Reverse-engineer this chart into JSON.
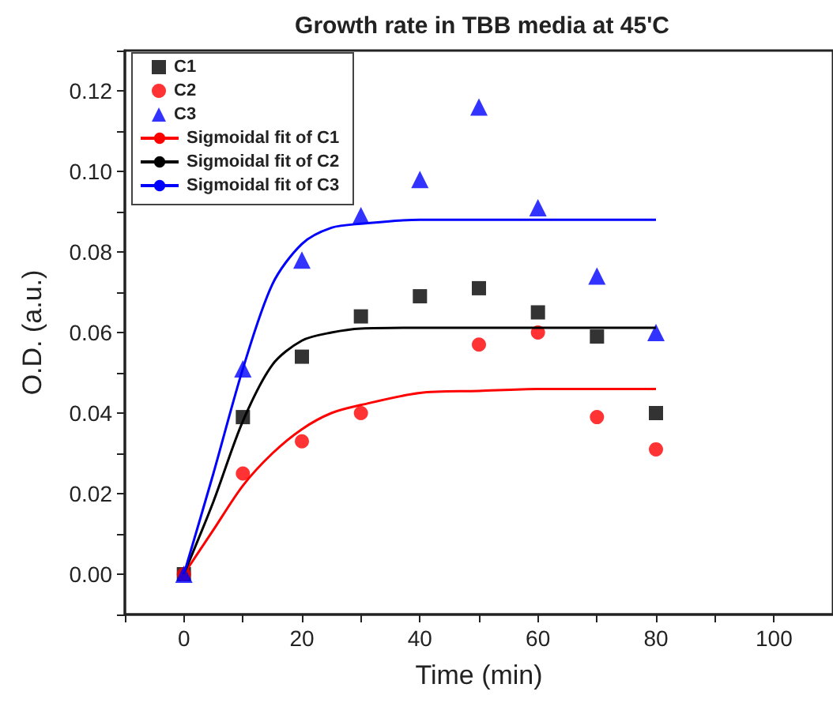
{
  "chart_data": {
    "type": "scatter",
    "title": "Growth rate in TBB media at 45'C",
    "xlabel": "Time (min)",
    "ylabel": "O.D. (a.u.)",
    "xlim": [
      -10,
      110
    ],
    "xticks": [
      {
        "value": -10,
        "label": null
      },
      0,
      {
        "value": 10,
        "label": null
      },
      20,
      {
        "value": 30,
        "label": null
      },
      40,
      {
        "value": 50,
        "label": null
      },
      60,
      {
        "value": 70,
        "label": null
      },
      80,
      {
        "value": 90,
        "label": null
      },
      100,
      {
        "value": 110,
        "label": null
      }
    ],
    "ylim": [
      -0.01,
      0.13
    ],
    "yticks": [
      {
        "value": -0.01,
        "label": null
      },
      {
        "value": 0,
        "label": "0.00"
      },
      {
        "value": 0.01,
        "label": null
      },
      {
        "value": 0.02,
        "label": "0.02"
      },
      {
        "value": 0.03,
        "label": null
      },
      {
        "value": 0.04,
        "label": "0.04"
      },
      {
        "value": 0.05,
        "label": null
      },
      {
        "value": 0.06,
        "label": "0.06"
      },
      {
        "value": 0.07,
        "label": null
      },
      {
        "value": 0.08,
        "label": "0.08"
      },
      {
        "value": 0.09,
        "label": null
      },
      {
        "value": 0.1,
        "label": "0.10"
      },
      {
        "value": 0.11,
        "label": null
      },
      {
        "value": 0.12,
        "label": "0.12"
      },
      {
        "value": 0.13,
        "label": null
      }
    ],
    "grid": false,
    "legend": "top left",
    "x": [
      0,
      10,
      20,
      30,
      40,
      50,
      60,
      70,
      80
    ],
    "series": [
      {
        "name": "C1",
        "color": "#000000",
        "marker": "square",
        "values": [
          0,
          0.039,
          0.054,
          0.064,
          0.069,
          0.071,
          0.065,
          0.059,
          0.04
        ]
      },
      {
        "name": "C2",
        "color": "#ff0000",
        "marker": "circle",
        "values": [
          0,
          0.025,
          0.033,
          0.04,
          null,
          0.057,
          0.06,
          0.039,
          0.031
        ]
      },
      {
        "name": "C3",
        "color": "#0000ff",
        "marker": "triangle",
        "values": [
          0,
          0.051,
          0.078,
          0.089,
          0.098,
          0.116,
          0.091,
          0.074,
          0.06
        ]
      },
      {
        "name": "Sigmoidal fit of C1",
        "type": "line",
        "color": "#ff0000",
        "marker": "none",
        "line_style": "solid",
        "x": [
          0,
          5,
          10,
          15,
          20,
          25,
          30,
          40,
          50,
          60,
          80
        ],
        "values": [
          0,
          0.011,
          0.022,
          0.03,
          0.036,
          0.04,
          0.042,
          0.045,
          0.0455,
          0.046,
          0.046
        ]
      },
      {
        "name": "Sigmoidal fit of C2",
        "type": "line",
        "color": "#000000",
        "marker": "none",
        "line_style": "solid",
        "x": [
          0,
          5,
          10,
          15,
          20,
          25,
          30,
          40,
          80
        ],
        "values": [
          0,
          0.018,
          0.038,
          0.052,
          0.058,
          0.06,
          0.061,
          0.0612,
          0.0612
        ]
      },
      {
        "name": "Sigmoidal fit of C3",
        "type": "line",
        "color": "#0000ff",
        "marker": "none",
        "line_style": "solid",
        "x": [
          0,
          5,
          10,
          15,
          20,
          25,
          30,
          40,
          80
        ],
        "values": [
          0,
          0.025,
          0.051,
          0.072,
          0.082,
          0.086,
          0.087,
          0.088,
          0.088
        ]
      }
    ]
  }
}
